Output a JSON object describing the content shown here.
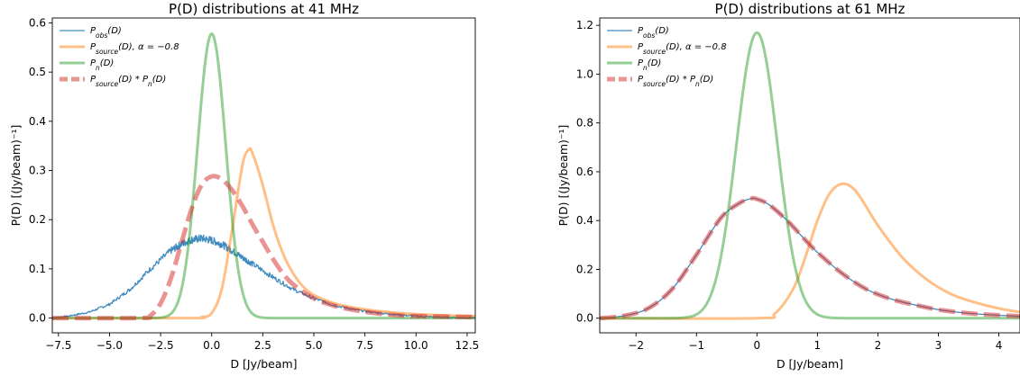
{
  "chart_data": [
    {
      "type": "line",
      "title": "P(D) distributions at 41 MHz",
      "xlabel": "D [Jy/beam]",
      "ylabel": "P(D) [(Jy/beam)⁻¹]",
      "xlim": [
        -7.8,
        12.9
      ],
      "ylim": [
        -0.03,
        0.61
      ],
      "xticks": [
        -7.5,
        -5.0,
        -2.5,
        0.0,
        2.5,
        5.0,
        7.5,
        10.0,
        12.5
      ],
      "xtick_labels": [
        "−7.5",
        "−5.0",
        "−2.5",
        "0.0",
        "2.5",
        "5.0",
        "7.5",
        "10.0",
        "12.5"
      ],
      "yticks": [
        0.0,
        0.1,
        0.2,
        0.3,
        0.4,
        0.5,
        0.6
      ],
      "ytick_labels": [
        "0.0",
        "0.1",
        "0.2",
        "0.3",
        "0.4",
        "0.5",
        "0.6"
      ],
      "legend_position": "upper left",
      "series": [
        {
          "name": "P_obs(D)",
          "legend_main": "P",
          "legend_sub": "obs",
          "legend_tail": "(D)",
          "color": "#1f77b4",
          "style": "solid",
          "width": 1.3,
          "opacity": 0.85,
          "noisy": true,
          "x": [
            -7.8,
            -7.0,
            -6.0,
            -5.0,
            -4.0,
            -3.0,
            -2.0,
            -1.5,
            -1.0,
            -0.5,
            0.0,
            0.5,
            1.0,
            1.5,
            2.0,
            3.0,
            4.0,
            5.0,
            6.0,
            7.0,
            8.0,
            9.0,
            10.0,
            11.0,
            12.0,
            12.9
          ],
          "y": [
            0.0,
            0.004,
            0.012,
            0.028,
            0.058,
            0.1,
            0.137,
            0.15,
            0.159,
            0.162,
            0.158,
            0.15,
            0.137,
            0.123,
            0.11,
            0.083,
            0.058,
            0.04,
            0.026,
            0.017,
            0.011,
            0.007,
            0.004,
            0.002,
            0.001,
            0.0
          ]
        },
        {
          "name": "P_source(D), α = −0.8",
          "legend_main": "P",
          "legend_sub": "source",
          "legend_tail": "(D), α = −0.8",
          "color": "#ff7f0e",
          "style": "solid",
          "width": 3,
          "opacity": 0.5,
          "x": [
            -7.8,
            -1.0,
            -0.5,
            0.0,
            0.5,
            1.0,
            1.5,
            1.8,
            2.0,
            2.5,
            3.0,
            3.5,
            4.0,
            4.5,
            5.0,
            6.0,
            7.0,
            8.0,
            9.0,
            10.0,
            11.0,
            12.9
          ],
          "y": [
            0.0,
            0.0,
            0.002,
            0.01,
            0.06,
            0.18,
            0.31,
            0.342,
            0.335,
            0.27,
            0.19,
            0.13,
            0.09,
            0.063,
            0.047,
            0.03,
            0.021,
            0.015,
            0.011,
            0.008,
            0.006,
            0.004
          ]
        },
        {
          "name": "P_n(D)",
          "legend_main": "P",
          "legend_sub": "n",
          "legend_tail": "(D)",
          "color": "#2ca02c",
          "style": "solid",
          "width": 3,
          "opacity": 0.5,
          "gaussian": {
            "amplitude": 0.578,
            "mu": 0.0,
            "sigma": 0.69,
            "range": [
              -7.8,
              12.9
            ]
          }
        },
        {
          "name": "P_source(D) * P_n(D)",
          "legend_main": "P",
          "legend_sub": "source",
          "legend_tail": "(D) * P",
          "legend_sub2": "n",
          "legend_tail2": "(D)",
          "color": "#d62728",
          "style": "dashed",
          "width": 5,
          "opacity": 0.5,
          "x": [
            -7.8,
            -3.5,
            -3.0,
            -2.5,
            -2.0,
            -1.5,
            -1.0,
            -0.5,
            0.0,
            0.5,
            1.0,
            1.5,
            2.0,
            2.5,
            3.0,
            3.5,
            4.0,
            5.0,
            6.0,
            7.0,
            8.0,
            9.0,
            10.0,
            12.9
          ],
          "y": [
            0.0,
            0.0,
            0.005,
            0.03,
            0.08,
            0.15,
            0.22,
            0.27,
            0.288,
            0.282,
            0.26,
            0.228,
            0.19,
            0.155,
            0.12,
            0.09,
            0.068,
            0.04,
            0.025,
            0.016,
            0.01,
            0.006,
            0.004,
            0.002
          ]
        }
      ]
    },
    {
      "type": "line",
      "title": "P(D) distributions at 61 MHz",
      "xlabel": "D [Jy/beam]",
      "ylabel": "P(D) [(Jy/beam)⁻¹]",
      "xlim": [
        -2.6,
        4.35
      ],
      "ylim": [
        -0.06,
        1.23
      ],
      "xticks": [
        -2,
        -1,
        0,
        1,
        2,
        3,
        4
      ],
      "xtick_labels": [
        "−2",
        "−1",
        "0",
        "1",
        "2",
        "3",
        "4"
      ],
      "yticks": [
        0.0,
        0.2,
        0.4,
        0.6,
        0.8,
        1.0,
        1.2
      ],
      "ytick_labels": [
        "0.0",
        "0.2",
        "0.4",
        "0.6",
        "0.8",
        "1.0",
        "1.2"
      ],
      "legend_position": "upper left",
      "series": [
        {
          "name": "P_obs(D)",
          "legend_main": "P",
          "legend_sub": "obs",
          "legend_tail": "(D)",
          "color": "#1f77b4",
          "style": "solid",
          "width": 1.3,
          "opacity": 0.85,
          "x": [
            -2.6,
            -2.2,
            -1.8,
            -1.4,
            -1.0,
            -0.6,
            -0.3,
            -0.1,
            0.0,
            0.2,
            0.5,
            0.8,
            1.0,
            1.4,
            1.8,
            2.2,
            2.6,
            3.0,
            3.5,
            4.0,
            4.35
          ],
          "y": [
            0.0,
            0.01,
            0.04,
            0.12,
            0.26,
            0.41,
            0.47,
            0.49,
            0.488,
            0.465,
            0.4,
            0.32,
            0.27,
            0.185,
            0.12,
            0.08,
            0.055,
            0.035,
            0.02,
            0.012,
            0.008
          ]
        },
        {
          "name": "P_source(D), α = −0.8",
          "legend_main": "P",
          "legend_sub": "source",
          "legend_tail": "(D), α = −0.8",
          "color": "#ff7f0e",
          "style": "solid",
          "width": 3,
          "opacity": 0.5,
          "x": [
            -2.6,
            0.0,
            0.3,
            0.6,
            0.8,
            1.0,
            1.2,
            1.4,
            1.6,
            1.8,
            2.0,
            2.4,
            2.8,
            3.2,
            3.6,
            4.0,
            4.35
          ],
          "y": [
            0.0,
            0.0,
            0.02,
            0.12,
            0.25,
            0.4,
            0.51,
            0.55,
            0.53,
            0.46,
            0.38,
            0.25,
            0.16,
            0.1,
            0.065,
            0.04,
            0.025
          ]
        },
        {
          "name": "P_n(D)",
          "legend_main": "P",
          "legend_sub": "n",
          "legend_tail": "(D)",
          "color": "#2ca02c",
          "style": "solid",
          "width": 3,
          "opacity": 0.5,
          "gaussian": {
            "amplitude": 1.17,
            "mu": 0.0,
            "sigma": 0.34,
            "range": [
              -2.6,
              4.35
            ]
          }
        },
        {
          "name": "P_source(D) * P_n(D)",
          "legend_main": "P",
          "legend_sub": "source",
          "legend_tail": "(D) * P",
          "legend_sub2": "n",
          "legend_tail2": "(D)",
          "color": "#d62728",
          "style": "dashed",
          "width": 5,
          "opacity": 0.5,
          "x": [
            -2.6,
            -2.2,
            -1.8,
            -1.4,
            -1.0,
            -0.6,
            -0.3,
            -0.1,
            0.0,
            0.2,
            0.5,
            0.8,
            1.0,
            1.4,
            1.8,
            2.2,
            2.6,
            3.0,
            3.5,
            4.0,
            4.35
          ],
          "y": [
            0.0,
            0.01,
            0.04,
            0.12,
            0.26,
            0.41,
            0.47,
            0.49,
            0.488,
            0.465,
            0.4,
            0.32,
            0.27,
            0.185,
            0.12,
            0.08,
            0.055,
            0.035,
            0.02,
            0.012,
            0.008
          ]
        }
      ]
    }
  ]
}
